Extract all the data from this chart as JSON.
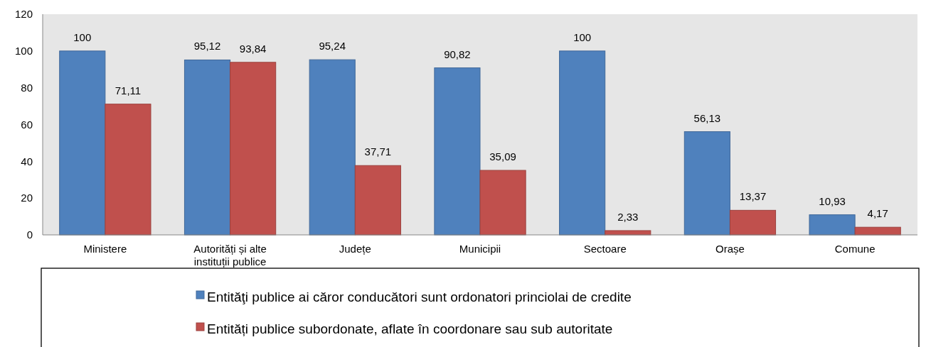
{
  "chart_data": {
    "type": "bar",
    "categories": [
      "Ministere",
      "Autorități și alte instituții publice",
      "Județe",
      "Municipii",
      "Sectoare",
      "Orașe",
      "Comune"
    ],
    "series": [
      {
        "name": "Entităţi publice ai căror conducători sunt ordonatori princiolai de credite",
        "color": "#4f81bd",
        "values": [
          100,
          95.12,
          95.24,
          90.82,
          100,
          56.13,
          10.93
        ],
        "value_labels": [
          "100",
          "95,12",
          "95,24",
          "90,82",
          "100",
          "56,13",
          "10,93"
        ]
      },
      {
        "name": "Entități publice subordonate, aflate în coordonare sau sub autoritate",
        "color": "#c0504d",
        "values": [
          71.11,
          93.84,
          37.71,
          35.09,
          2.33,
          13.37,
          4.17
        ],
        "value_labels": [
          "71,11",
          "93,84",
          "37,71",
          "35,09",
          "2,33",
          "13,37",
          "4,17"
        ]
      }
    ],
    "ylim": [
      0,
      120
    ],
    "yticks": [
      0,
      20,
      40,
      60,
      80,
      100,
      120
    ],
    "grid": false,
    "legend": "bottom"
  }
}
